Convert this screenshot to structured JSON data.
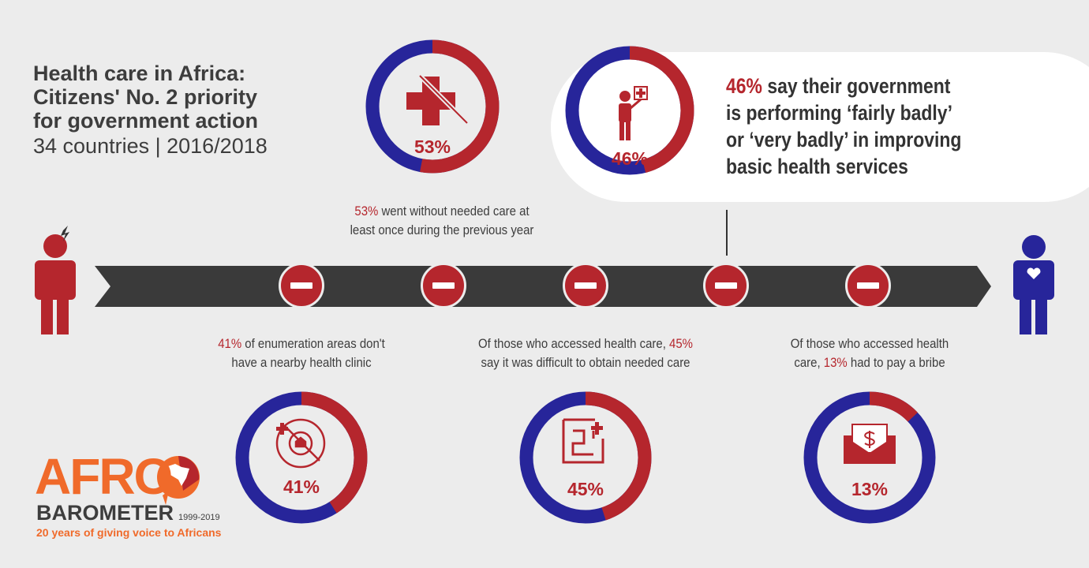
{
  "header": {
    "title_lines": [
      "Health care in Africa:",
      "Citizens' No. 2 priority",
      "for government action"
    ],
    "subtitle": "34 countries | 2016/2018"
  },
  "colors": {
    "red": "#b5262d",
    "blue": "#27259a",
    "dark": "#3a3a3a",
    "orange": "#f06a2a"
  },
  "donuts": [
    {
      "id": "no-care",
      "value": 53,
      "label": "53%",
      "icon": "crossed-medical-cross-icon"
    },
    {
      "id": "gov-performance",
      "value": 46,
      "label": "46%",
      "icon": "person-with-health-sign-icon"
    },
    {
      "id": "no-clinic",
      "value": 41,
      "label": "41%",
      "icon": "no-clinic-nearby-icon"
    },
    {
      "id": "difficult-care",
      "value": 45,
      "label": "45%",
      "icon": "maze-icon"
    },
    {
      "id": "bribe",
      "value": 13,
      "label": "13%",
      "icon": "envelope-money-icon"
    }
  ],
  "captions": {
    "no_care": {
      "pct": "53%",
      "line1": " went without needed care at",
      "line2": "least once during the previous year"
    },
    "no_clinic": {
      "pct": "41%",
      "line1": " of enumeration areas don't",
      "line2": "have a nearby health clinic"
    },
    "difficult": {
      "line1": "Of those who accessed health care, ",
      "pct": "45%",
      "line2": "say it was difficult to obtain needed care"
    },
    "bribe": {
      "line1": "Of those who accessed health",
      "line2a": "care, ",
      "pct": "13%",
      "line2b": " had to pay a bribe"
    }
  },
  "bubble": {
    "pct": "46%",
    "line1": " say their government",
    "line2": "is performing ‘fairly badly’",
    "line3": "or ‘very badly’ in improving",
    "line4": "basic health services"
  },
  "logo": {
    "afro": "AFRO",
    "barometer": "BAROMETER",
    "years": "1999-2019",
    "tagline": "20 years of giving voice to Africans"
  }
}
